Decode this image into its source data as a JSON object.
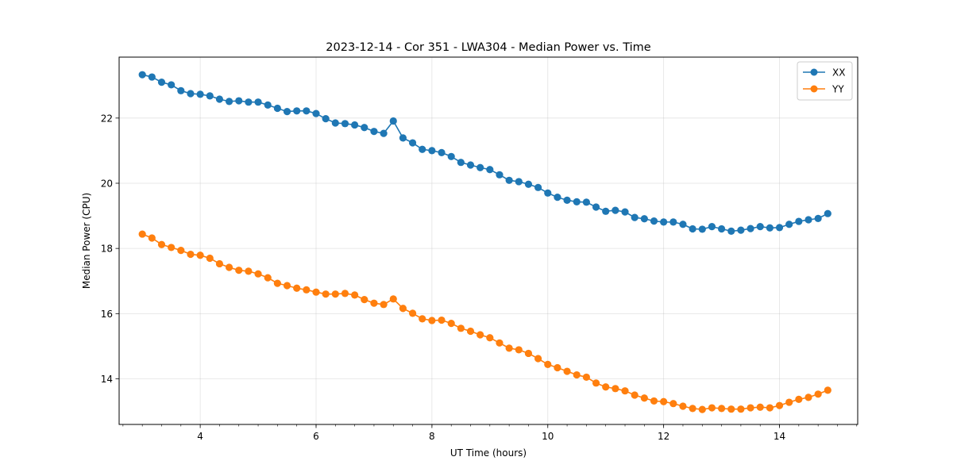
{
  "chart_data": {
    "type": "line",
    "title": "2023-12-14 - Cor 351 - LWA304 - Median Power vs. Time",
    "xlabel": "UT Time (hours)",
    "ylabel": "Median Power (CPU)",
    "xlim": [
      2.6,
      15.35
    ],
    "ylim": [
      12.6,
      23.87
    ],
    "xticks": [
      4,
      6,
      8,
      10,
      12,
      14
    ],
    "xtick_labels": [
      "4",
      "6",
      "8",
      "10",
      "12",
      "14"
    ],
    "xminor_step": 0.333333,
    "yticks": [
      14,
      16,
      18,
      20,
      22
    ],
    "ytick_labels": [
      "14",
      "16",
      "18",
      "20",
      "22"
    ],
    "grid": true,
    "legend_position": "top-right",
    "x_start": 3.0,
    "x_step": 0.166667,
    "series": [
      {
        "name": "XX",
        "color": "#1f77b4",
        "values": [
          23.33,
          23.26,
          23.1,
          23.02,
          22.84,
          22.75,
          22.73,
          22.68,
          22.58,
          22.51,
          22.53,
          22.49,
          22.49,
          22.4,
          22.3,
          22.2,
          22.22,
          22.22,
          22.14,
          21.98,
          21.85,
          21.83,
          21.79,
          21.71,
          21.59,
          21.53,
          21.91,
          21.39,
          21.24,
          21.04,
          21.0,
          20.94,
          20.82,
          20.64,
          20.56,
          20.48,
          20.42,
          20.26,
          20.09,
          20.05,
          19.97,
          19.87,
          19.7,
          19.57,
          19.48,
          19.43,
          19.42,
          19.27,
          19.14,
          19.17,
          19.12,
          18.95,
          18.91,
          18.84,
          18.81,
          18.81,
          18.74,
          18.6,
          18.59,
          18.67,
          18.6,
          18.53,
          18.56,
          18.61,
          18.67,
          18.63,
          18.64,
          18.74,
          18.83,
          18.88,
          18.92,
          19.07
        ]
      },
      {
        "name": "YY",
        "color": "#ff7f0e",
        "values": [
          18.44,
          18.32,
          18.12,
          18.03,
          17.94,
          17.82,
          17.79,
          17.7,
          17.53,
          17.42,
          17.33,
          17.3,
          17.22,
          17.1,
          16.93,
          16.86,
          16.78,
          16.73,
          16.66,
          16.6,
          16.6,
          16.62,
          16.57,
          16.43,
          16.32,
          16.28,
          16.45,
          16.16,
          16.01,
          15.84,
          15.79,
          15.8,
          15.7,
          15.55,
          15.46,
          15.35,
          15.26,
          15.1,
          14.94,
          14.89,
          14.78,
          14.62,
          14.44,
          14.34,
          14.23,
          14.12,
          14.05,
          13.87,
          13.75,
          13.7,
          13.63,
          13.5,
          13.41,
          13.32,
          13.3,
          13.24,
          13.16,
          13.09,
          13.06,
          13.11,
          13.09,
          13.07,
          13.07,
          13.11,
          13.13,
          13.11,
          13.18,
          13.28,
          13.37,
          13.43,
          13.53,
          13.65
        ]
      }
    ]
  }
}
